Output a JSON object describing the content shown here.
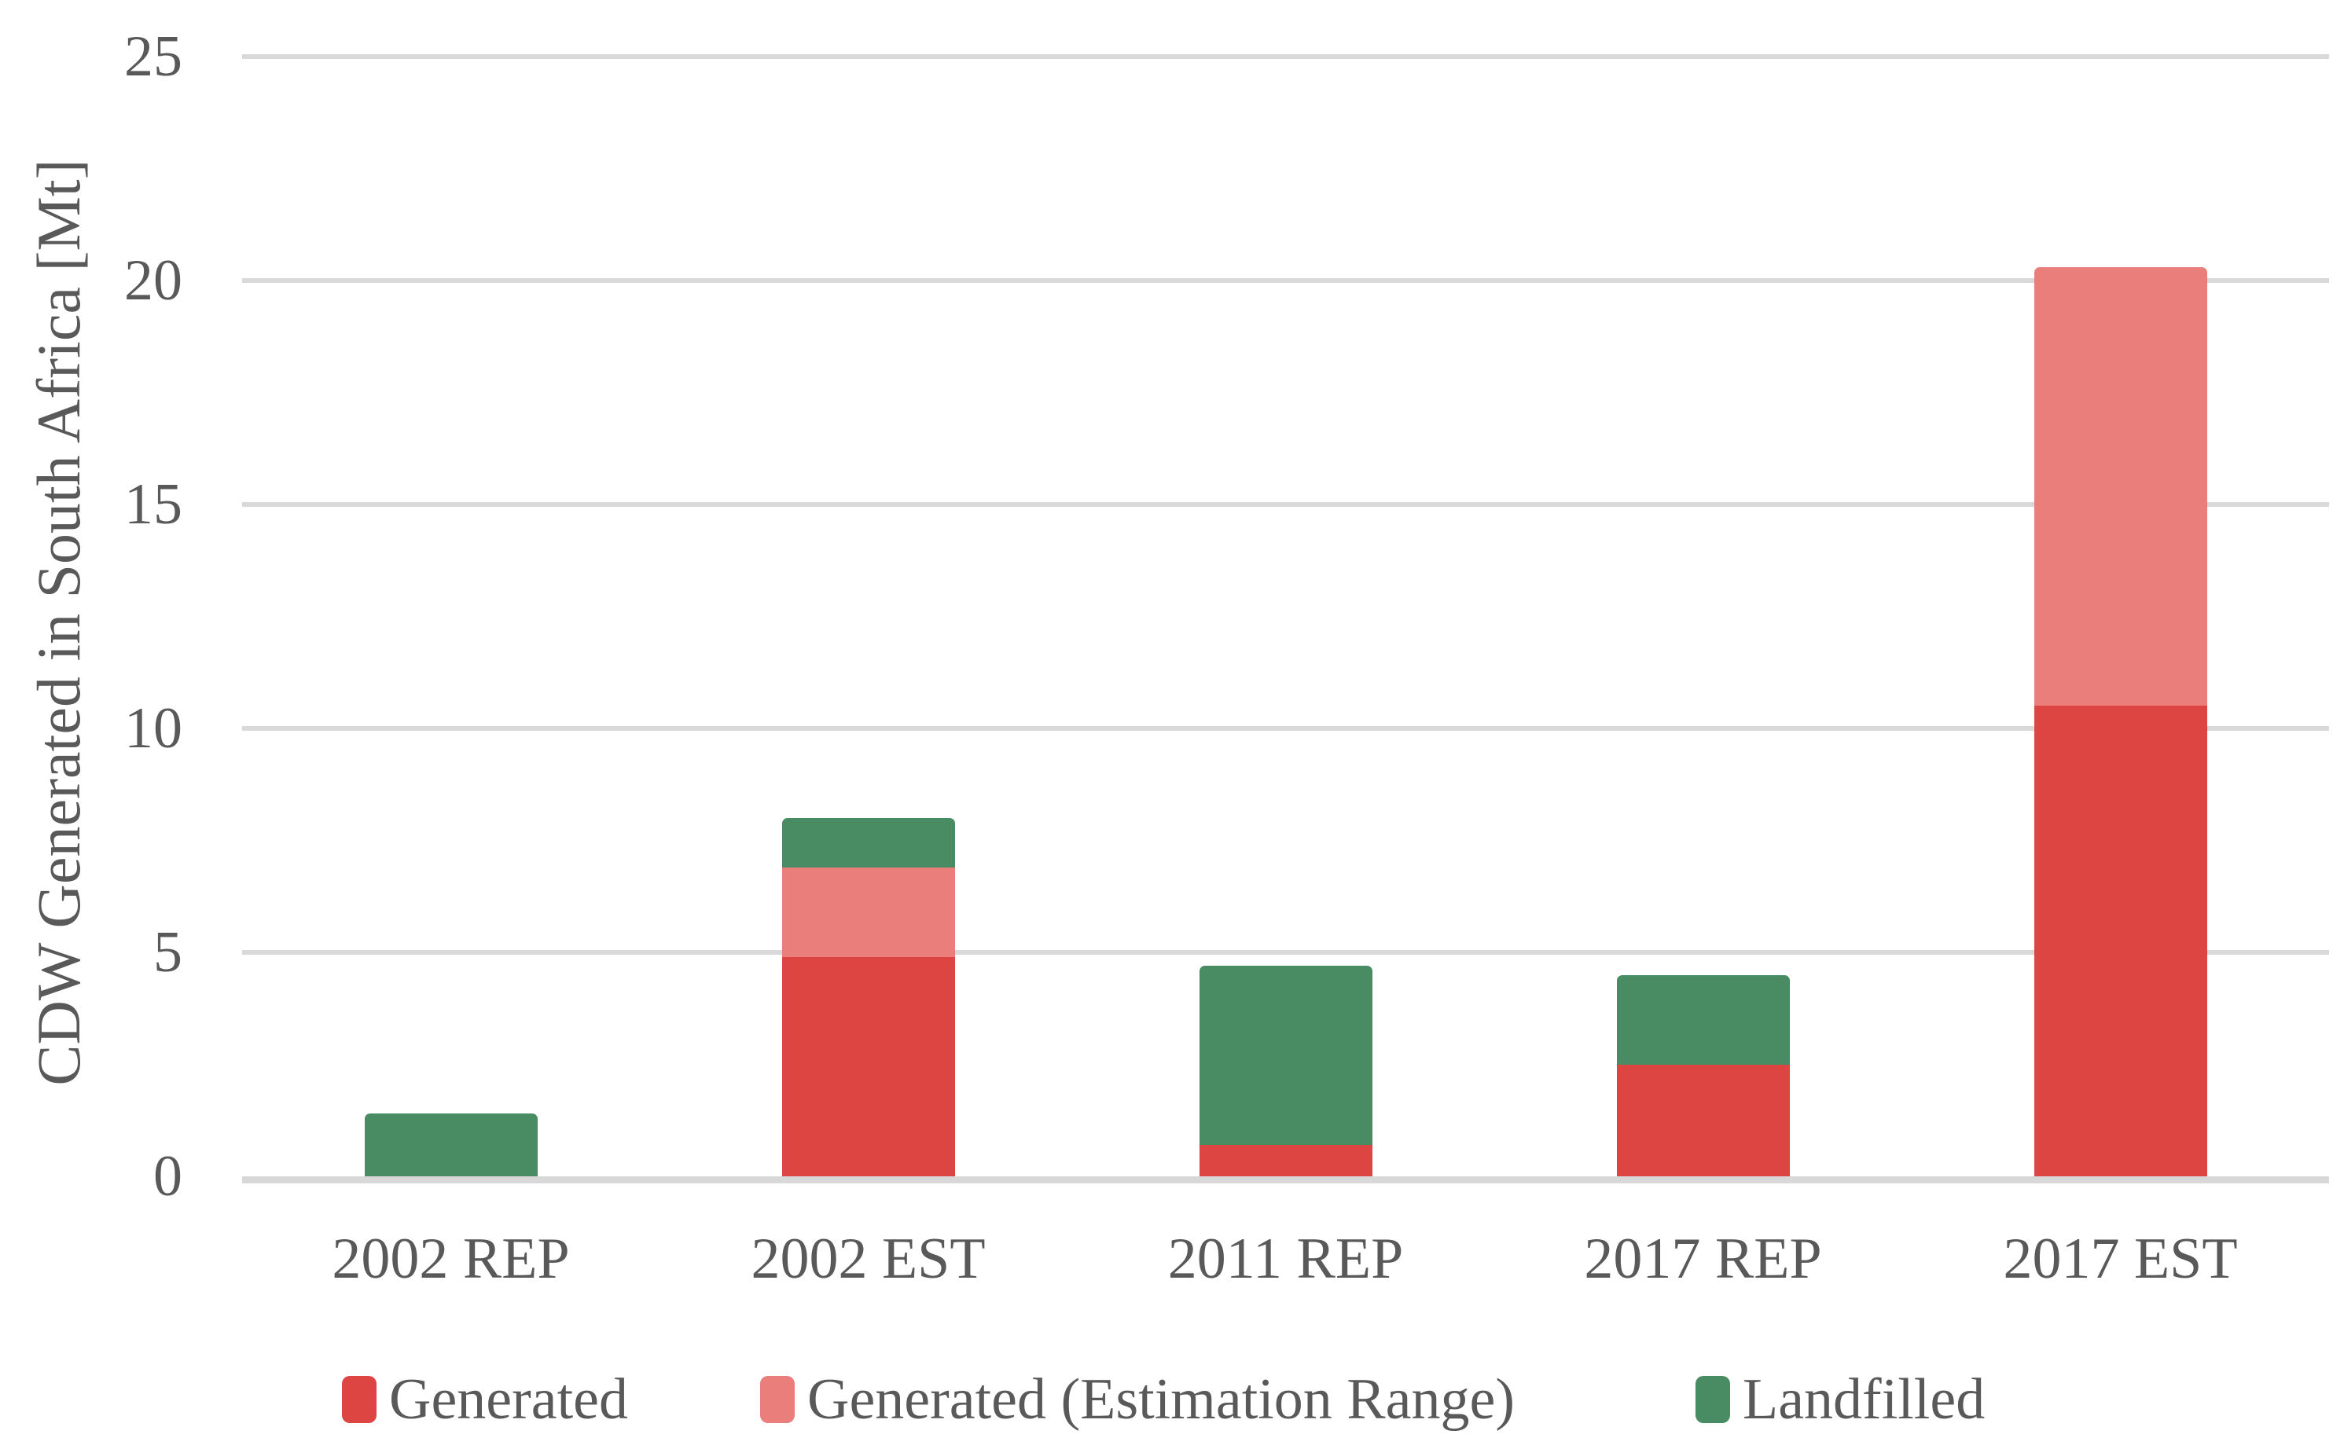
{
  "chart_data": {
    "type": "bar",
    "stacked": true,
    "title": "",
    "xlabel": "",
    "ylabel": "CDW Generated in South Africa [Mt]",
    "ylim": [
      0,
      25
    ],
    "yticks": [
      0,
      5,
      10,
      15,
      20,
      25
    ],
    "grid": "horizontal",
    "legend_position": "bottom",
    "categories": [
      "2002 REP",
      "2002 EST",
      "2011 REP",
      "2017 REP",
      "2017 EST"
    ],
    "series": [
      {
        "name": "Generated",
        "color": "#DD4543",
        "values": [
          0,
          4.9,
          0.7,
          2.5,
          10.5
        ]
      },
      {
        "name": "Generated (Estimation Range)",
        "color": "#E97E7B",
        "values": [
          0,
          2.0,
          0,
          0,
          9.8
        ]
      },
      {
        "name": "Landfilled",
        "color": "#498C64",
        "values": [
          1.4,
          1.1,
          4.0,
          2.0,
          0
        ]
      }
    ],
    "stack_totals": [
      1.4,
      8.0,
      4.7,
      4.5,
      20.3
    ],
    "colors": {
      "gridline": "#D9D9D9",
      "axis_text": "#595959",
      "background": "#FFFFFF"
    }
  }
}
